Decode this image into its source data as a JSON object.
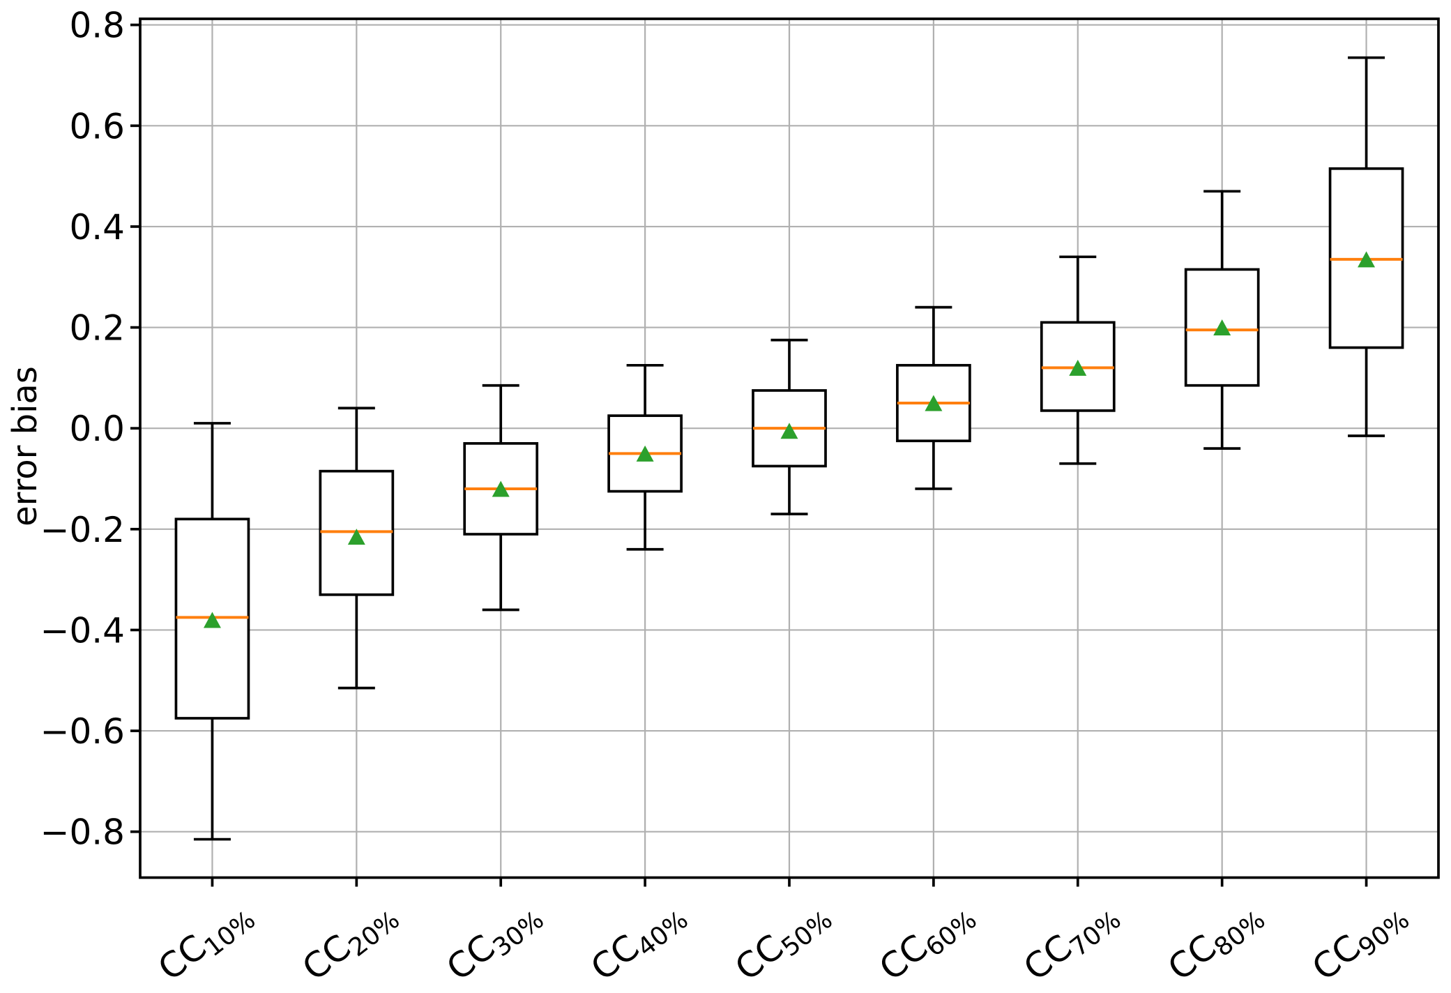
{
  "chart_data": {
    "type": "boxplot",
    "title": "",
    "xlabel": "",
    "ylabel": "error bias",
    "ylim": [
      -0.891,
      0.812
    ],
    "yticks": [
      -0.8,
      -0.6,
      -0.4,
      -0.2,
      0.0,
      0.2,
      0.4,
      0.6,
      0.8
    ],
    "ytick_labels": [
      "−0.8",
      "−0.6",
      "−0.4",
      "−0.2",
      "0.0",
      "0.2",
      "0.4",
      "0.6",
      "0.8"
    ],
    "grid": true,
    "legend_position": "none",
    "categories": [
      {
        "base": "CC",
        "subscript": "10%"
      },
      {
        "base": "CC",
        "subscript": "20%"
      },
      {
        "base": "CC",
        "subscript": "30%"
      },
      {
        "base": "CC",
        "subscript": "40%"
      },
      {
        "base": "CC",
        "subscript": "50%"
      },
      {
        "base": "CC",
        "subscript": "60%"
      },
      {
        "base": "CC",
        "subscript": "70%"
      },
      {
        "base": "CC",
        "subscript": "80%"
      },
      {
        "base": "CC",
        "subscript": "90%"
      }
    ],
    "boxes": [
      {
        "label": "CC 10%",
        "whisker_low": -0.815,
        "q1": -0.575,
        "median": -0.375,
        "mean": -0.38,
        "q3": -0.18,
        "whisker_high": 0.01
      },
      {
        "label": "CC 20%",
        "whisker_low": -0.515,
        "q1": -0.33,
        "median": -0.205,
        "mean": -0.215,
        "q3": -0.085,
        "whisker_high": 0.04
      },
      {
        "label": "CC 30%",
        "whisker_low": -0.36,
        "q1": -0.21,
        "median": -0.12,
        "mean": -0.12,
        "q3": -0.03,
        "whisker_high": 0.085
      },
      {
        "label": "CC 40%",
        "whisker_low": -0.24,
        "q1": -0.125,
        "median": -0.05,
        "mean": -0.05,
        "q3": 0.025,
        "whisker_high": 0.125
      },
      {
        "label": "CC 50%",
        "whisker_low": -0.17,
        "q1": -0.075,
        "median": 0.0,
        "mean": -0.005,
        "q3": 0.075,
        "whisker_high": 0.175
      },
      {
        "label": "CC 60%",
        "whisker_low": -0.12,
        "q1": -0.025,
        "median": 0.05,
        "mean": 0.05,
        "q3": 0.125,
        "whisker_high": 0.24
      },
      {
        "label": "CC 70%",
        "whisker_low": -0.07,
        "q1": 0.035,
        "median": 0.12,
        "mean": 0.12,
        "q3": 0.21,
        "whisker_high": 0.34
      },
      {
        "label": "CC 80%",
        "whisker_low": -0.04,
        "q1": 0.085,
        "median": 0.195,
        "mean": 0.2,
        "q3": 0.315,
        "whisker_high": 0.47
      },
      {
        "label": "CC 90%",
        "whisker_low": -0.015,
        "q1": 0.16,
        "median": 0.335,
        "mean": 0.335,
        "q3": 0.515,
        "whisker_high": 0.735
      }
    ],
    "mean_marker_shape": "triangle-up",
    "colors": {
      "box_line": "#000000",
      "median_line": "#ff7f0e",
      "mean_marker": "#2ca02c",
      "grid_line": "#b0b0b0",
      "axis_line": "#000000",
      "text": "#000000",
      "background": "#ffffff"
    }
  }
}
